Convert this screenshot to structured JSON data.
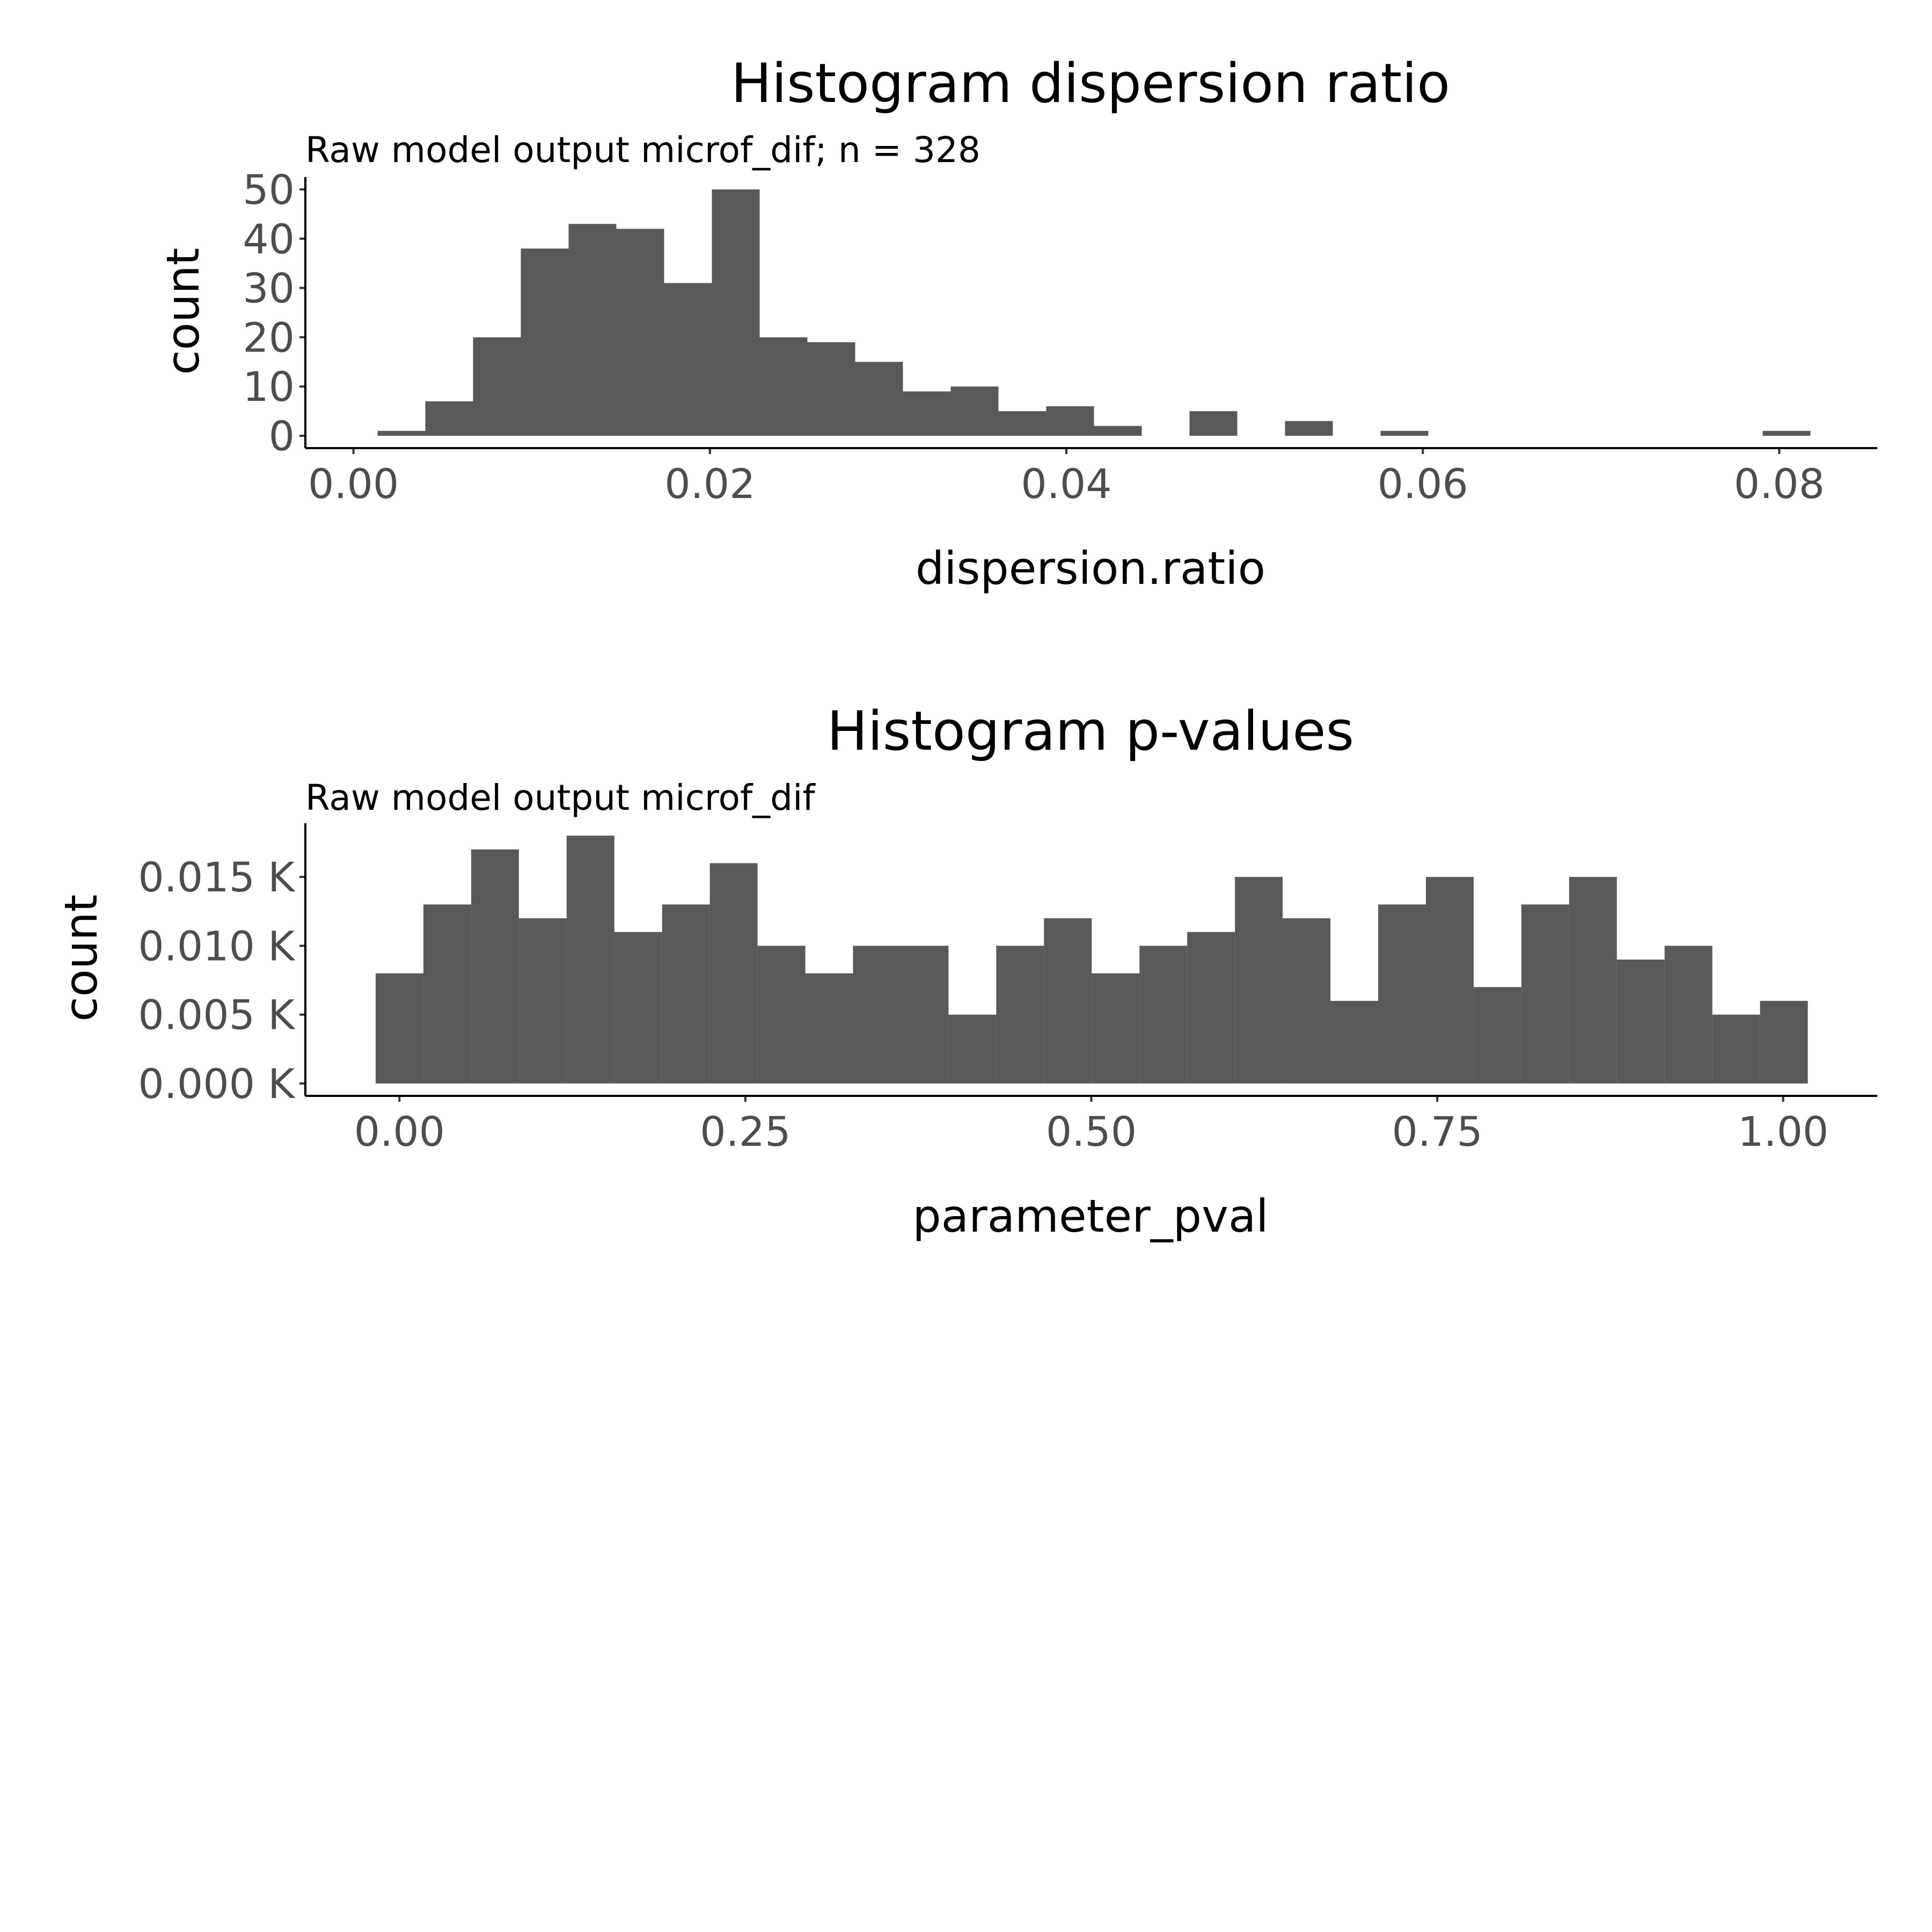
{
  "colors": {
    "bar": "#595959",
    "background": "#ffffff",
    "axis": "#000000",
    "tick_text": "#4d4d4d"
  },
  "chart_data": [
    {
      "type": "bar",
      "title": "Histogram dispersion ratio",
      "subtitle": "Raw model output microf_dif; n = 328",
      "xlabel": "dispersion.ratio",
      "ylabel": "count",
      "grid": false,
      "xlim": [
        -0.0027,
        0.0855
      ],
      "ylim": [
        -2.5,
        52.5
      ],
      "xticks": [
        {
          "value": 0.0,
          "label": "0.00"
        },
        {
          "value": 0.02,
          "label": "0.02"
        },
        {
          "value": 0.04,
          "label": "0.04"
        },
        {
          "value": 0.06,
          "label": "0.06"
        },
        {
          "value": 0.08,
          "label": "0.08"
        }
      ],
      "yticks": [
        {
          "value": 0,
          "label": "0"
        },
        {
          "value": 10,
          "label": "10"
        },
        {
          "value": 20,
          "label": "20"
        },
        {
          "value": 30,
          "label": "30"
        },
        {
          "value": 40,
          "label": "40"
        },
        {
          "value": 50,
          "label": "50"
        }
      ],
      "bins": {
        "start": 0.00135,
        "width": 0.00268
      },
      "values": [
        1,
        7,
        20,
        38,
        43,
        42,
        31,
        50,
        20,
        19,
        15,
        9,
        10,
        5,
        6,
        2,
        0,
        5,
        0,
        3,
        0,
        1,
        0,
        0,
        0,
        0,
        0,
        0,
        0,
        1
      ]
    },
    {
      "type": "bar",
      "title": "Histogram p-values",
      "subtitle": "Raw model output microf_dif",
      "xlabel": "parameter_pval",
      "ylabel": "count",
      "grid": false,
      "xlim": [
        -0.068,
        1.068
      ],
      "ylim": [
        -0.0009,
        0.0189
      ],
      "xticks": [
        {
          "value": 0.0,
          "label": "0.00"
        },
        {
          "value": 0.25,
          "label": "0.25"
        },
        {
          "value": 0.5,
          "label": "0.50"
        },
        {
          "value": 0.75,
          "label": "0.75"
        },
        {
          "value": 1.0,
          "label": "1.00"
        }
      ],
      "yticks": [
        {
          "value": 0.0,
          "label": "0.000 K"
        },
        {
          "value": 0.005,
          "label": "0.005 K"
        },
        {
          "value": 0.01,
          "label": "0.010 K"
        },
        {
          "value": 0.015,
          "label": "0.015 K"
        }
      ],
      "bins": {
        "start": -0.0172,
        "width": 0.0345
      },
      "values": [
        0.008,
        0.013,
        0.017,
        0.012,
        0.018,
        0.011,
        0.013,
        0.016,
        0.01,
        0.008,
        0.01,
        0.01,
        0.005,
        0.01,
        0.012,
        0.008,
        0.01,
        0.011,
        0.015,
        0.012,
        0.006,
        0.013,
        0.015,
        0.007,
        0.013,
        0.015,
        0.009,
        0.01,
        0.005,
        0.006
      ]
    }
  ]
}
